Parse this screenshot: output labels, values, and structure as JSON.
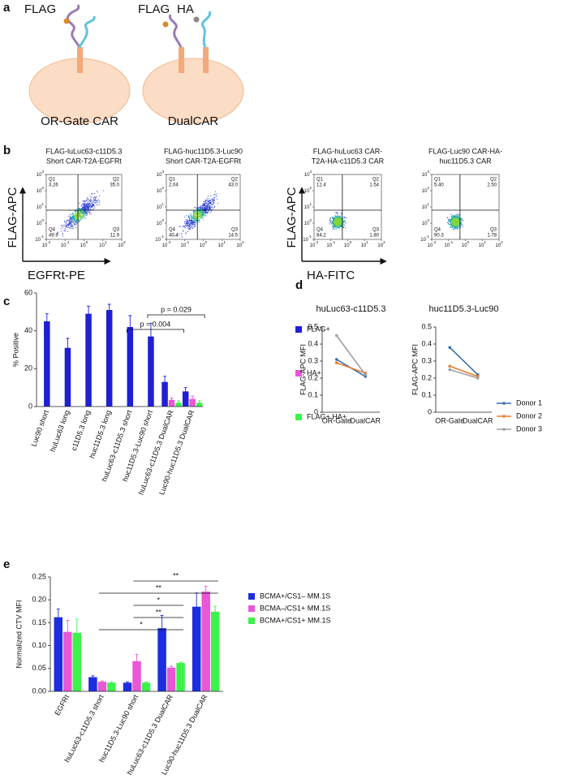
{
  "panel_labels": [
    "a",
    "b",
    "c",
    "d",
    "e"
  ],
  "diagram": {
    "cells": [
      {
        "tags": [
          "FLAG"
        ],
        "label": "OR-Gate CAR"
      },
      {
        "tags": [
          "FLAG",
          "HA"
        ],
        "label": "DualCAR"
      }
    ]
  },
  "flow": {
    "tick_base": "10",
    "xticks": [
      -2,
      -1,
      0,
      1,
      2
    ],
    "yticks": [
      -1,
      0,
      1,
      2,
      3
    ],
    "y_labels": [
      "FLAG-APC",
      "FLAG-APC"
    ],
    "x_labels": [
      "EGFRt-PE",
      "HA-FITC"
    ],
    "plots": [
      {
        "title": [
          "FLAG-luLuc63-c11D5.3",
          "Short CAR-T2A-EGFRt"
        ],
        "quadrants": [
          {
            "name": "Q1",
            "value": "3.26"
          },
          {
            "name": "Q2",
            "value": "35.0"
          },
          {
            "name": "Q3",
            "value": "11.9"
          },
          {
            "name": "Q4",
            "value": "49.9"
          }
        ]
      },
      {
        "title": [
          "FLAG-huc11D5.3-Luc90",
          "Short CAR-T2A-EGFRt"
        ],
        "quadrants": [
          {
            "name": "Q1",
            "value": "2.04"
          },
          {
            "name": "Q2",
            "value": "43.0"
          },
          {
            "name": "Q3",
            "value": "14.5"
          },
          {
            "name": "Q4",
            "value": "40.4"
          }
        ]
      },
      {
        "title": [
          "FLAG-huLuc63 CAR-",
          "T2A-HA-c11D5.3 CAR"
        ],
        "quadrants": [
          {
            "name": "Q1",
            "value": "12.4"
          },
          {
            "name": "Q2",
            "value": "1.54"
          },
          {
            "name": "Q3",
            "value": "1.80"
          },
          {
            "name": "Q4",
            "value": "84.2"
          }
        ]
      },
      {
        "title": [
          "FLAG-Luc90 CAR-HA-",
          "huc11D5.3 CAR"
        ],
        "quadrants": [
          {
            "name": "Q1",
            "value": "5.40"
          },
          {
            "name": "Q2",
            "value": "2.50"
          },
          {
            "name": "Q3",
            "value": "1.78"
          },
          {
            "name": "Q4",
            "value": "90.3"
          }
        ]
      }
    ]
  },
  "chart_data": [
    {
      "type": "bar",
      "y_label": "% Positive",
      "categories": [
        "Luc90 short",
        "huLuc63 long",
        "c11D5.3 long",
        "huc11D5.3 long",
        "huLuc63-c11D5.3 short",
        "huc11D5.3-Luc90 short",
        "huLuc63-c11D5.3 DualCAR",
        "Luc90-huc11D5.3 DualCAR"
      ],
      "series": [
        {
          "name": "FLAG+",
          "color": "#1f1fd6",
          "values": [
            45,
            31,
            49,
            51,
            42,
            37,
            13,
            8
          ],
          "errors": [
            4,
            5,
            4,
            3,
            6,
            7,
            3,
            2
          ]
        },
        {
          "name": "HA+",
          "color": "#e957d8",
          "values": [
            null,
            null,
            null,
            null,
            null,
            null,
            3.5,
            4
          ],
          "errors": [
            null,
            null,
            null,
            null,
            null,
            null,
            1,
            1.5
          ]
        },
        {
          "name": "FLAG+ HA+",
          "color": "#3df24b",
          "values": [
            null,
            null,
            null,
            null,
            null,
            null,
            2,
            2
          ],
          "errors": [
            null,
            null,
            null,
            null,
            null,
            null,
            1,
            1
          ]
        }
      ],
      "ylim": [
        0,
        60
      ],
      "yticks": [
        0,
        20,
        40,
        60
      ],
      "legend": "right",
      "annotations": [
        {
          "text": "p = 0.029",
          "from": 5,
          "to": 7
        },
        {
          "text": "p = 0.004",
          "from": 4,
          "to": 6
        }
      ]
    },
    {
      "type": "line",
      "title": "huLuc63-c11D5.3",
      "y_label": "FLAG-APC MFI",
      "categories": [
        "OR-Gate",
        "DualCAR"
      ],
      "series": [
        {
          "color": "#3a6fb0",
          "values": [
            0.31,
            0.21
          ]
        },
        {
          "color": "#e87d2e",
          "values": [
            0.29,
            0.23
          ]
        },
        {
          "color": "#a0a0a0",
          "values": [
            0.45,
            0.22
          ]
        }
      ],
      "ylim": [
        0,
        0.5
      ],
      "yticks": [
        0,
        0.1,
        0.2,
        0.3,
        0.4,
        0.5
      ]
    },
    {
      "type": "line",
      "title": "huc11D5.3-Luc90",
      "y_label": "FLAG-APC MFI",
      "categories": [
        "OR-Gate",
        "DualCAR"
      ],
      "series": [
        {
          "name": "Donor 1",
          "color": "#3a6fb0",
          "values": [
            0.38,
            0.22
          ]
        },
        {
          "name": "Donor 2",
          "color": "#e87d2e",
          "values": [
            0.27,
            0.21
          ]
        },
        {
          "name": "Donor 3",
          "color": "#a0a0a0",
          "values": [
            0.25,
            0.2
          ]
        }
      ],
      "ylim": [
        0,
        0.5
      ],
      "yticks": [
        0,
        0.1,
        0.2,
        0.3,
        0.4,
        0.5
      ],
      "legend": "right"
    },
    {
      "type": "bar",
      "y_label": "Normalized CTV MFI",
      "categories": [
        "EGFRt",
        "huLuc63-c11D5.3 short",
        "huc11D5.3-Luc90 short",
        "huLuc63-c11D5.3 DualCAR",
        "Luc90-huc11D5.3 DualCAR"
      ],
      "series": [
        {
          "name": "BCMA+/CS1– MM.1S",
          "color": "#1d2de0",
          "values": [
            0.162,
            0.031,
            0.019,
            0.138,
            0.185
          ],
          "errors": [
            0.018,
            0.003,
            0.002,
            0.028,
            0.03
          ]
        },
        {
          "name": "BCMA–/CS1+ MM.1S",
          "color": "#e957d8",
          "values": [
            0.13,
            0.021,
            0.066,
            0.052,
            0.218
          ],
          "errors": [
            0.025,
            0.002,
            0.015,
            0.003,
            0.012
          ]
        },
        {
          "name": "BCMA+/CS1+ MM.1S",
          "color": "#3df24b",
          "values": [
            0.128,
            0.019,
            0.019,
            0.062,
            0.174
          ],
          "errors": [
            0.03,
            0.002,
            0.001,
            0.002,
            0.012
          ]
        }
      ],
      "ylim": [
        0,
        0.25
      ],
      "yticks": [
        {
          "value": 0,
          "label": "0.00"
        },
        0.05,
        {
          "value": 0.1,
          "label": "0.10"
        },
        0.15,
        {
          "value": 0.2,
          "label": "0.20"
        },
        0.25
      ],
      "legend": "right",
      "annotations": [
        {
          "text": "**",
          "from": 2,
          "to": 4
        },
        {
          "text": "**",
          "from": 1,
          "to": 4
        },
        {
          "text": "*",
          "from": 2,
          "to": 3
        },
        {
          "text": "**",
          "from": 2,
          "to": 3
        },
        {
          "text": "*",
          "from": 1,
          "to": 3
        }
      ]
    }
  ]
}
